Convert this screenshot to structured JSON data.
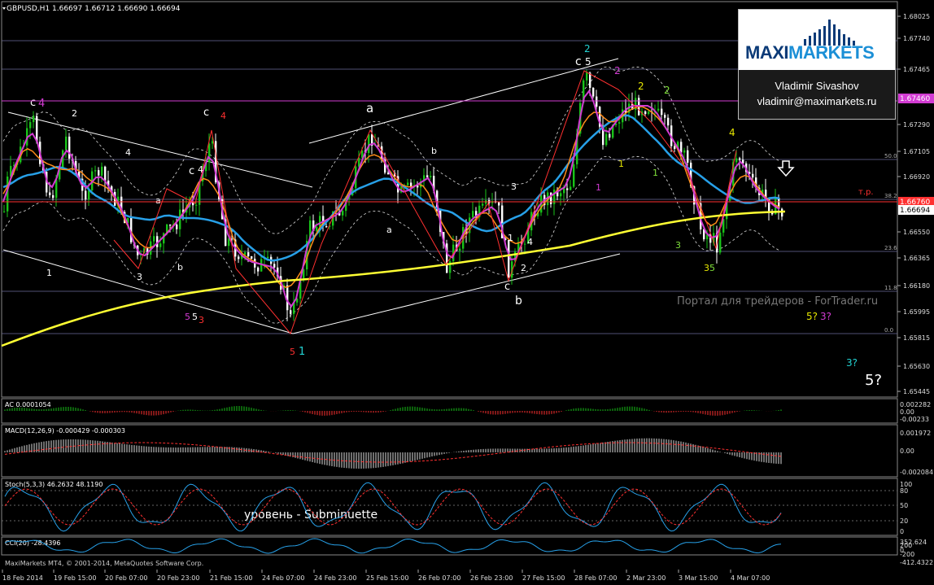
{
  "window": {
    "symbol_title": "GBPUSD,H1  1.66697 1.66712 1.66690 1.66694"
  },
  "price_axis": {
    "ticks": [
      "1.68025",
      "1.67740",
      "1.67465",
      "1.67290",
      "1.67105",
      "1.66920",
      "1.66694",
      "1.66550",
      "1.66365",
      "1.66180",
      "1.65995",
      "1.65815",
      "1.65630",
      "1.65445"
    ],
    "current_price": "1.66694",
    "magenta_level": "1.67460",
    "red_level": "1.66760",
    "fib_labels": [
      "50.0",
      "38.2",
      "23.6",
      "11.8",
      "0.0"
    ],
    "tp_label": "т.р."
  },
  "time_axis": {
    "labels": [
      "18 Feb 2014",
      "19 Feb 15:00",
      "20 Feb 07:00",
      "20 Feb 23:00",
      "21 Feb 15:00",
      "24 Feb 07:00",
      "24 Feb 23:00",
      "25 Feb 15:00",
      "26 Feb 07:00",
      "26 Feb 23:00",
      "27 Feb 15:00",
      "28 Feb 07:00",
      "2 Mar 23:00",
      "3 Mar 15:00",
      "4 Mar 07:00"
    ]
  },
  "watermark": "Портал для трейдеров - ForTrader.ru",
  "level_note": "уровень - Subminuette",
  "copyright": "MaxiMarkets MT4, © 2001-2014, MetaQuotes Software Corp.",
  "logo": {
    "part1": "MAXI",
    "part2": "MARKETS",
    "author_name": "Vladimir Sivashov",
    "author_email": "vladimir@maximarkets.ru"
  },
  "indicators": {
    "ac": {
      "title": "AC 0.0001054",
      "ticks": [
        "0.002282",
        "0.00",
        "-0.00233"
      ]
    },
    "macd": {
      "title": "MACD(12,26,9) -0.000429 -0.000303",
      "ticks": [
        "0.001972",
        "0.00",
        "-0.002084"
      ]
    },
    "stoch": {
      "title": "Stoch(5,3,3) 46.2632 48.1190",
      "ticks": [
        "100",
        "80",
        "50",
        "20",
        "0"
      ]
    },
    "cci": {
      "title": "CCI(20) -28.4396",
      "ticks": [
        "352.624",
        "200",
        "0",
        "-200",
        "-412.4322"
      ]
    }
  },
  "wave_labels": [
    {
      "text": "c",
      "color": "#ffffff"
    },
    {
      "text": "4",
      "color": "#d23bd2"
    },
    {
      "text": "2",
      "color": "#ffffff"
    },
    {
      "text": "1",
      "color": "#ffffff"
    },
    {
      "text": "4",
      "color": "#ffffff"
    },
    {
      "text": "a",
      "color": "#ffffff"
    },
    {
      "text": "3",
      "color": "#ffffff"
    },
    {
      "text": "b",
      "color": "#ffffff"
    },
    {
      "text": "c",
      "color": "#ffffff"
    },
    {
      "text": "4",
      "color": "#ffffff"
    },
    {
      "text": "c",
      "color": "#ffffff"
    },
    {
      "text": "4",
      "color": "#ff3030"
    },
    {
      "text": "5",
      "color": "#d23bd2"
    },
    {
      "text": "5",
      "color": "#ffffff"
    },
    {
      "text": "3",
      "color": "#ff3030"
    },
    {
      "text": "5",
      "color": "#ff3030"
    },
    {
      "text": "1",
      "color": "#22d3d3"
    },
    {
      "text": "a",
      "color": "#ffffff"
    },
    {
      "text": "b",
      "color": "#ffffff"
    },
    {
      "text": "a",
      "color": "#ffffff"
    },
    {
      "text": "3",
      "color": "#ffffff"
    },
    {
      "text": "c",
      "color": "#ffffff"
    },
    {
      "text": "b",
      "color": "#ffffff"
    },
    {
      "text": "1",
      "color": "#ffffff"
    },
    {
      "text": "2",
      "color": "#ffffff"
    },
    {
      "text": "4",
      "color": "#ffffff"
    },
    {
      "text": "2",
      "color": "#22d3d3"
    },
    {
      "text": "c",
      "color": "#ffffff"
    },
    {
      "text": "5",
      "color": "#ffffff"
    },
    {
      "text": "2",
      "color": "#d23bd2"
    },
    {
      "text": "2",
      "color": "#e6e600"
    },
    {
      "text": "2",
      "color": "#7fe03a"
    },
    {
      "text": "1",
      "color": "#d23bd2"
    },
    {
      "text": "1",
      "color": "#e6e600"
    },
    {
      "text": "1",
      "color": "#7fe03a"
    },
    {
      "text": "4",
      "color": "#e6e600"
    },
    {
      "text": "3",
      "color": "#7fe03a"
    },
    {
      "text": "3",
      "color": "#e6e600"
    },
    {
      "text": "5",
      "color": "#7fe03a"
    },
    {
      "text": "5?",
      "color": "#e6e600"
    },
    {
      "text": "3?",
      "color": "#d23bd2"
    },
    {
      "text": "3?",
      "color": "#22d3d3"
    },
    {
      "text": "5?",
      "color": "#ffffff"
    }
  ],
  "colors": {
    "bull": "#19c419",
    "bear": "#ffffff",
    "ma_yellow": "#ffff33",
    "ma_blue": "#27a0e8",
    "ma_orange": "#ff8c1a",
    "ma_magenta": "#d23bd2",
    "red": "#ff3030",
    "grid": "#7a7a9a"
  }
}
